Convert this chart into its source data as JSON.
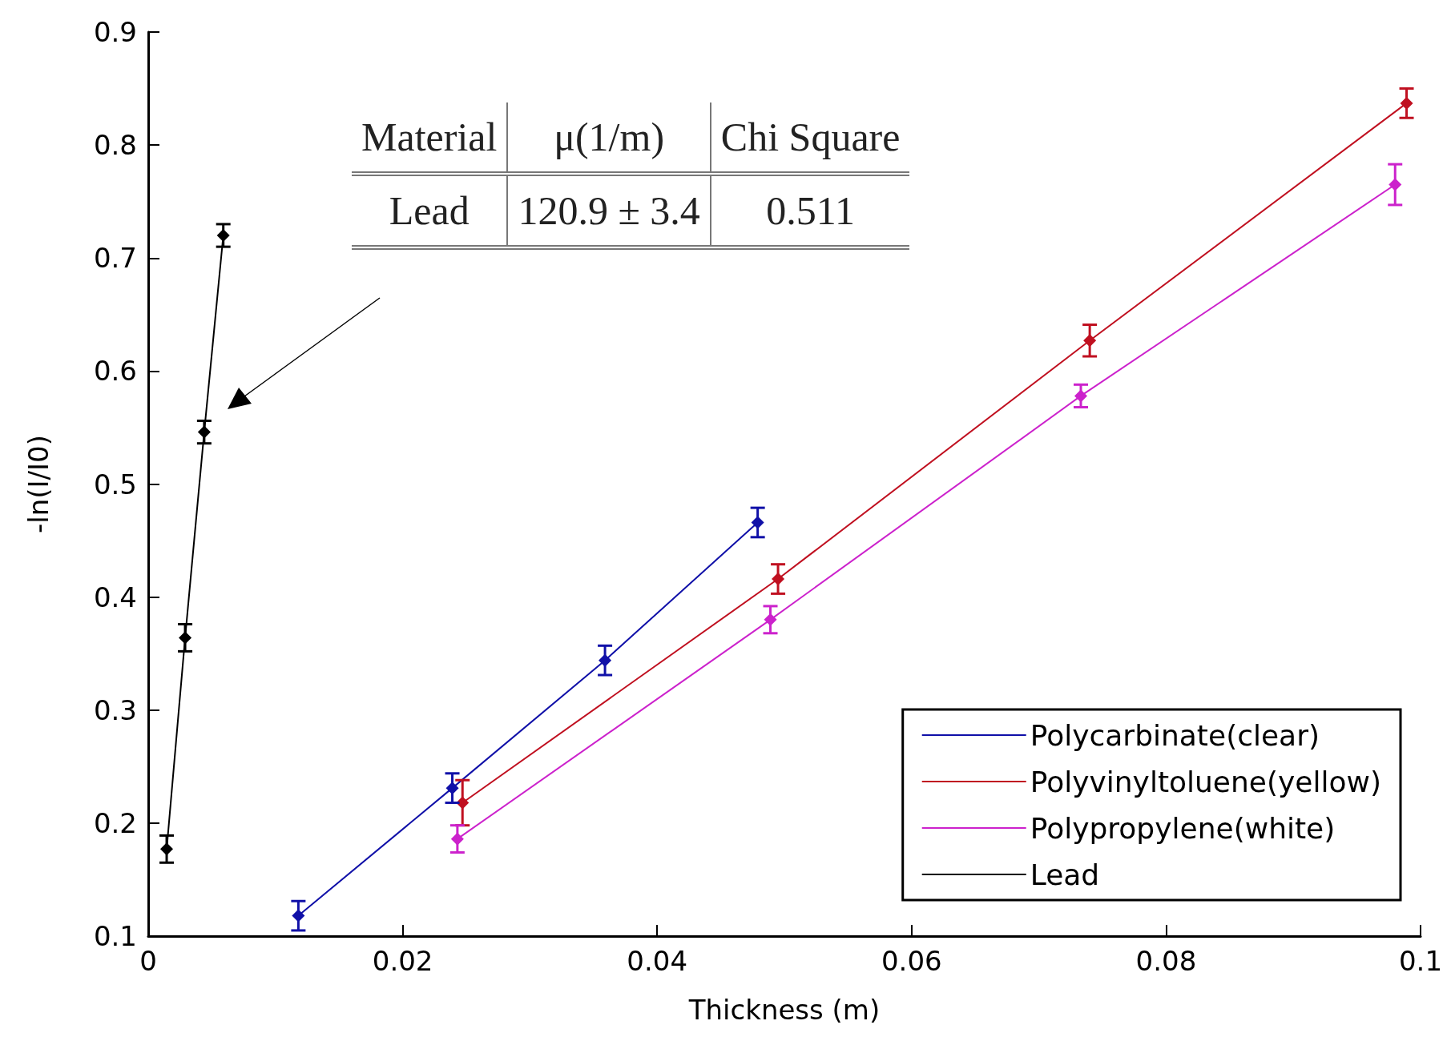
{
  "chart_data": {
    "type": "line",
    "xlabel": "Thickness (m)",
    "ylabel": "-ln(I/I0)",
    "series": [
      {
        "name": "Polycarbinate(clear)",
        "color": "#1010a8",
        "x": [
          0.0118,
          0.0239,
          0.0359,
          0.0479
        ],
        "values": [
          0.118,
          0.231,
          0.344,
          0.466
        ],
        "errors": [
          0.013,
          0.013,
          0.013,
          0.013
        ]
      },
      {
        "name": "Polyvinyltoluene(yellow)",
        "color": "#c01020",
        "x": [
          0.0247,
          0.0495,
          0.074,
          0.0989
        ],
        "values": [
          0.218,
          0.416,
          0.627,
          0.837
        ],
        "errors": [
          0.02,
          0.013,
          0.014,
          0.013
        ]
      },
      {
        "name": "Polypropylene(white)",
        "color": "#cc22cc",
        "x": [
          0.0243,
          0.0489,
          0.0733,
          0.098
        ],
        "values": [
          0.186,
          0.38,
          0.578,
          0.765
        ],
        "errors": [
          0.012,
          0.012,
          0.01,
          0.018
        ]
      },
      {
        "name": "Lead",
        "color": "#000000",
        "x": [
          0.00145,
          0.0029,
          0.0044,
          0.0059
        ],
        "values": [
          0.177,
          0.364,
          0.546,
          0.72
        ],
        "errors": [
          0.012,
          0.012,
          0.01,
          0.01
        ]
      }
    ],
    "xlim": [
      0,
      0.1
    ],
    "xticks": [
      0,
      0.02,
      0.04,
      0.06,
      0.08,
      0.1
    ],
    "ylim": [
      0.1,
      0.9
    ],
    "yticks": [
      0.1,
      0.2,
      0.3,
      0.4,
      0.5,
      0.6,
      0.7,
      0.8,
      0.9
    ],
    "annotations": [
      "Material",
      "μ(1/m)",
      "Chi Square",
      "Lead",
      "120.9 ± 3.4",
      "0.511"
    ],
    "legend": "bottom right",
    "grid": false,
    "marker": "diamond",
    "line_style": "solid"
  }
}
